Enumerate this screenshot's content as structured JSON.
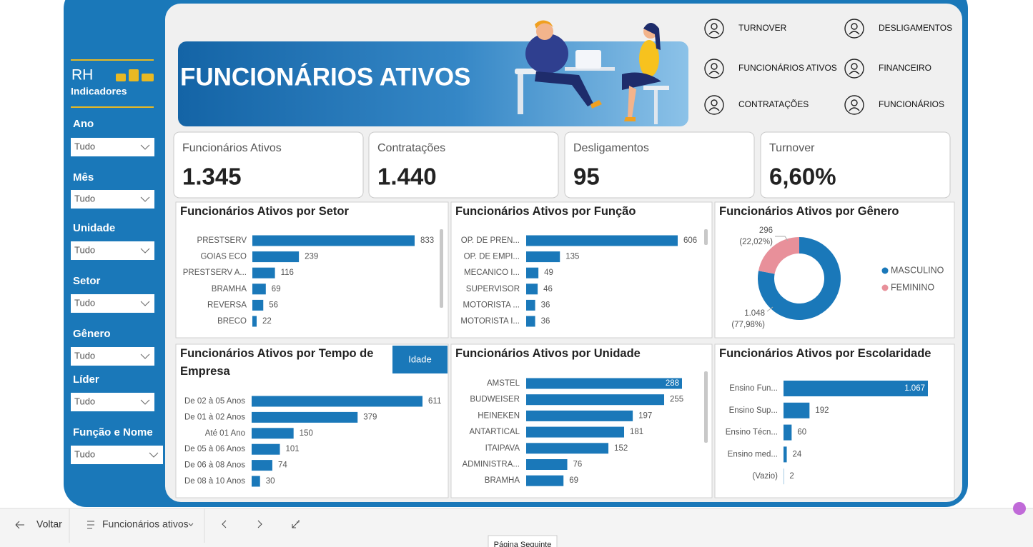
{
  "sidebar": {
    "brand": "RH",
    "subtitle": "Indicadores",
    "filters": [
      {
        "label": "Ano",
        "value": "Tudo"
      },
      {
        "label": "Mês",
        "value": "Tudo"
      },
      {
        "label": "Unidade",
        "value": "Tudo"
      },
      {
        "label": "Setor",
        "value": "Tudo"
      },
      {
        "label": "Gênero",
        "value": "Tudo"
      },
      {
        "label": "Líder",
        "value": "Tudo"
      },
      {
        "label": "Função e Nome",
        "value": "Tudo"
      }
    ]
  },
  "header": {
    "title": "FUNCIONÁRIOS ATIVOS"
  },
  "nav": [
    "TURNOVER",
    "DESLIGAMENTOS",
    "FUNCIONÁRIOS ATIVOS",
    "FINANCEIRO",
    "CONTRATAÇÕES",
    "FUNCIONÁRIOS"
  ],
  "kpis": [
    {
      "label": "Funcionários Ativos",
      "value": "1.345"
    },
    {
      "label": "Contratações",
      "value": "1.440"
    },
    {
      "label": "Desligamentos",
      "value": "95"
    },
    {
      "label": "Turnover",
      "value": "6,60%"
    }
  ],
  "charts": [
    {
      "type": "bar",
      "title": "Funcionários Ativos por Setor",
      "color": "#1a78b9",
      "categories": [
        "PRESTSERV",
        "GOIAS ECO",
        "PRESTSERV A...",
        "BRAMHA",
        "REVERSA",
        "BRECO"
      ],
      "values": [
        833,
        239,
        116,
        69,
        56,
        22
      ]
    },
    {
      "type": "bar",
      "title": "Funcionários Ativos por Função",
      "color": "#1a78b9",
      "categories": [
        "OP. DE PREN...",
        "OP. DE EMPI...",
        "MECANICO I...",
        "SUPERVISOR",
        "MOTORISTA ...",
        "MOTORISTA I..."
      ],
      "values": [
        606,
        135,
        49,
        46,
        36,
        36
      ]
    },
    {
      "type": "donut",
      "title": "Funcionários Ativos por Gênero",
      "colors": [
        "#1a78b9",
        "#e8909a"
      ],
      "categories": [
        "MASCULINO",
        "FEMININO"
      ],
      "values": [
        1048,
        296
      ],
      "value_labels": [
        "1.048",
        "296"
      ],
      "percent_labels": [
        "(77,98%)",
        "(22,02%)"
      ]
    },
    {
      "type": "bar",
      "title": "Funcionários Ativos por Tempo de Empresa",
      "button": "Idade",
      "color": "#1a78b9",
      "categories": [
        "De 02 à 05 Anos",
        "De 01 à 02 Anos",
        "Até 01 Ano",
        "De 05 à 06 Anos",
        "De 06 à 08 Anos",
        "De 08 à 10 Anos"
      ],
      "values": [
        611,
        379,
        150,
        101,
        74,
        30
      ]
    },
    {
      "type": "bar",
      "title": "Funcionários Ativos por Unidade",
      "color": "#1a78b9",
      "categories": [
        "AMSTEL",
        "BUDWEISER",
        "HEINEKEN",
        "ANTARTICAL",
        "ITAIPAVA",
        "ADMINISTRA...",
        "BRAMHA"
      ],
      "values": [
        288,
        255,
        197,
        181,
        152,
        76,
        69
      ]
    },
    {
      "type": "bar",
      "title": "Funcionários Ativos por Escolaridade",
      "color": "#1a78b9",
      "categories": [
        "Ensino Fun...",
        "Ensino Sup...",
        "Ensino Técn...",
        "Ensino med...",
        "(Vazio)"
      ],
      "values": [
        1067,
        192,
        60,
        24,
        2
      ],
      "value_labels": [
        "1.067",
        "192",
        "60",
        "24",
        "2"
      ]
    }
  ],
  "footer": {
    "back": "Voltar",
    "page": "Funcionários ativos",
    "tooltip": "Página Seguinte"
  }
}
